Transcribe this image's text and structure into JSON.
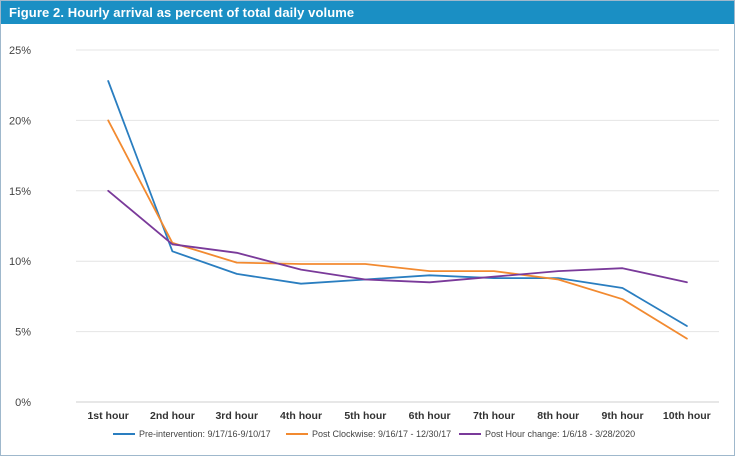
{
  "title": "Figure 2. Hourly arrival as percent of total daily volume",
  "chart_data": {
    "type": "line",
    "title": "Figure 2. Hourly arrival as percent of total daily volume",
    "xlabel": "",
    "ylabel": "",
    "categories": [
      "1st hour",
      "2nd hour",
      "3rd hour",
      "4th hour",
      "5th hour",
      "6th hour",
      "7th hour",
      "8th hour",
      "9th hour",
      "10th hour"
    ],
    "ylim": [
      0,
      25
    ],
    "yticks": [
      0,
      5,
      10,
      15,
      20,
      25
    ],
    "ytick_labels": [
      "0%",
      "5%",
      "10%",
      "15%",
      "20%",
      "25%"
    ],
    "grid": true,
    "legend_position": "bottom",
    "series": [
      {
        "name": "Pre-intervention: 9/17/16-9/10/17",
        "color": "#2a7ec0",
        "values": [
          22.8,
          10.7,
          9.1,
          8.4,
          8.7,
          9.0,
          8.8,
          8.8,
          8.1,
          5.4
        ]
      },
      {
        "name": "Post Clockwise: 9/16/17 - 12/30/17",
        "color": "#f28a30",
        "values": [
          20.0,
          11.3,
          9.9,
          9.8,
          9.8,
          9.3,
          9.3,
          8.7,
          7.3,
          4.5
        ]
      },
      {
        "name": "Post Hour change: 1/6/18 - 3/28/2020",
        "color": "#7a3a9a",
        "values": [
          15.0,
          11.2,
          10.6,
          9.4,
          8.7,
          8.5,
          8.9,
          9.3,
          9.5,
          8.5
        ]
      }
    ]
  }
}
